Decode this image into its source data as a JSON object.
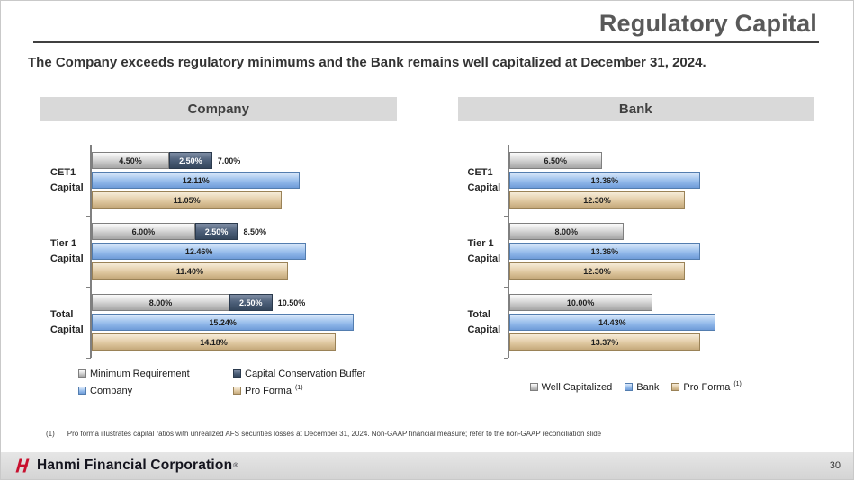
{
  "slide": {
    "title": "Regulatory Capital",
    "subtitle": "The Company exceeds regulatory minimums and the Bank remains well capitalized at December 31, 2024.",
    "footnote_marker": "(1)",
    "footnote_text": "Pro forma illustrates capital ratios with unrealized AFS securities losses at December 31, 2024. Non-GAAP financial measure; refer to the non-GAAP reconciliation slide",
    "footer_brand": "Hanmi Financial Corporation",
    "footer_brand_mark": "®",
    "page_number": "30"
  },
  "colors": {
    "accent_red": "#C8102E",
    "bar_gray": "#C9C9C9",
    "bar_buffer_slate": "#475A73",
    "bar_blue": "#92B9EA",
    "bar_tan": "#DDC69E",
    "panel_header_bg": "#D9D9D9",
    "footer_bg": "#D9D9D9",
    "title_gray": "#595959"
  },
  "chart_data": [
    {
      "type": "bar",
      "orientation": "horizontal",
      "title": "Company",
      "categories": [
        "CET1\nCapital",
        "Tier 1\nCapital",
        "Total\nCapital"
      ],
      "axis_max": 17.5,
      "unit": "%",
      "grid": false,
      "series": [
        {
          "name": "Minimum Requirement",
          "colorKey": "gray",
          "role": "stack-base",
          "values": [
            4.5,
            6.0,
            8.0
          ]
        },
        {
          "name": "Capital Conservation Buffer",
          "colorKey": "slate",
          "role": "stack-top",
          "values": [
            2.5,
            2.5,
            2.5
          ]
        },
        {
          "name": "Company",
          "colorKey": "blue",
          "role": "bar",
          "values": [
            12.11,
            12.46,
            15.24
          ]
        },
        {
          "name": "Pro Forma",
          "colorKey": "tan",
          "role": "bar",
          "values": [
            11.05,
            11.4,
            14.18
          ]
        }
      ],
      "stack_total_labels": [
        "7.00%",
        "8.50%",
        "10.50%"
      ],
      "legend": [
        {
          "label": "Minimum Requirement",
          "colorKey": "gray"
        },
        {
          "label": "Capital Conservation Buffer",
          "colorKey": "slate"
        },
        {
          "label": "Company",
          "colorKey": "blue"
        },
        {
          "label": "Pro Forma",
          "colorKey": "tan",
          "sup": "(1)"
        }
      ],
      "legend_layout": "grid"
    },
    {
      "type": "bar",
      "orientation": "horizontal",
      "title": "Bank",
      "categories": [
        "CET1\nCapital",
        "Tier 1\nCapital",
        "Total\nCapital"
      ],
      "axis_max": 21,
      "unit": "%",
      "grid": false,
      "series": [
        {
          "name": "Well Capitalized",
          "colorKey": "gray",
          "role": "bar",
          "values": [
            6.5,
            8.0,
            10.0
          ]
        },
        {
          "name": "Bank",
          "colorKey": "blue",
          "role": "bar",
          "values": [
            13.36,
            13.36,
            14.43
          ]
        },
        {
          "name": "Pro Forma",
          "colorKey": "tan",
          "role": "bar",
          "values": [
            12.3,
            12.3,
            13.37
          ]
        }
      ],
      "legend": [
        {
          "label": "Well Capitalized",
          "colorKey": "gray"
        },
        {
          "label": "Bank",
          "colorKey": "blue"
        },
        {
          "label": "Pro Forma",
          "colorKey": "tan",
          "sup": "(1)"
        }
      ],
      "legend_layout": "row"
    }
  ]
}
